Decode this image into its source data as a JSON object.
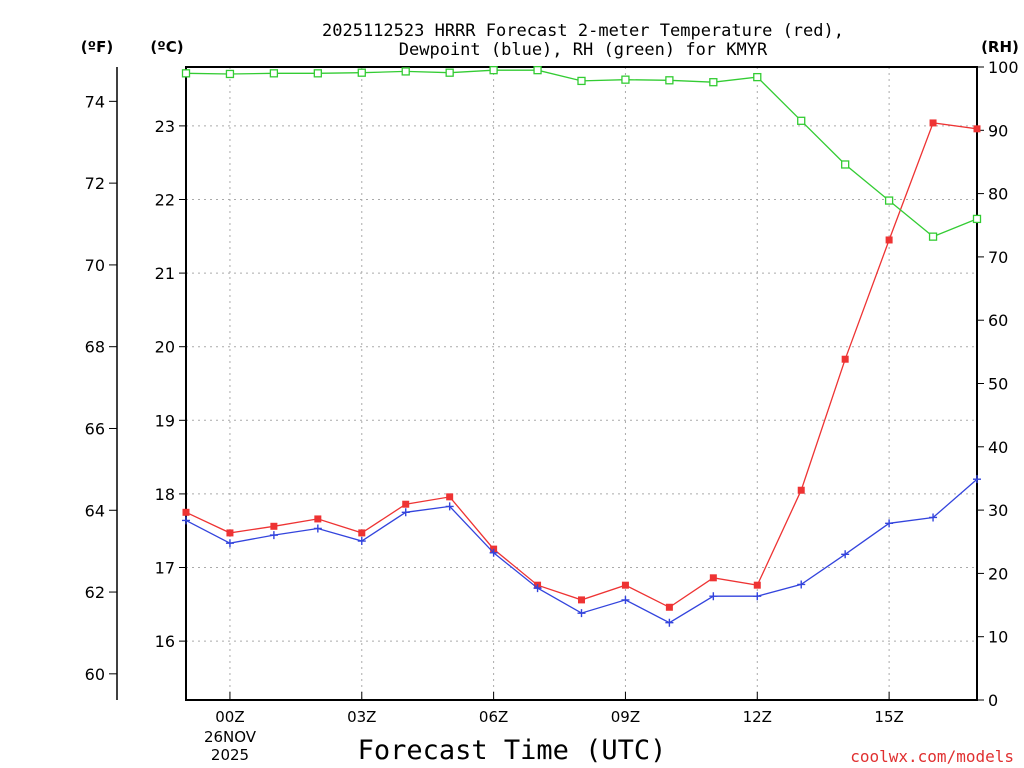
{
  "chart_data": {
    "type": "line",
    "title_line1": "2025112523 HRRR Forecast 2-meter Temperature (red),",
    "title_line2": "Dewpoint (blue), RH (green) for KMYR",
    "xlabel": "Forecast Time (UTC)",
    "watermark": "coolwx.com/models",
    "unit_labels": {
      "fahrenheit": "(ºF)",
      "celsius": "(ºC)",
      "rh": "(RH)"
    },
    "x_hours": [
      -1,
      0,
      1,
      2,
      3,
      4,
      5,
      6,
      7,
      8,
      9,
      10,
      11,
      12,
      13,
      14,
      15,
      16,
      17
    ],
    "x_ticks": [
      {
        "hour": 0,
        "label": "00Z"
      },
      {
        "hour": 3,
        "label": "03Z"
      },
      {
        "hour": 6,
        "label": "06Z"
      },
      {
        "hour": 9,
        "label": "09Z"
      },
      {
        "hour": 12,
        "label": "12Z"
      },
      {
        "hour": 15,
        "label": "15Z"
      }
    ],
    "date_label_line1": "26NOV",
    "date_label_line2": "2025",
    "xlim": [
      -1,
      17
    ],
    "celsius_axis": {
      "ylim": [
        15.2,
        23.8
      ],
      "ticks": [
        "16",
        "17",
        "18",
        "19",
        "20",
        "21",
        "22",
        "23"
      ]
    },
    "fahrenheit_axis": {
      "ticks": [
        "60",
        "62",
        "64",
        "66",
        "68",
        "70",
        "72",
        "74"
      ]
    },
    "rh_axis": {
      "ylim": [
        0,
        100
      ],
      "ticks": [
        "0",
        "10",
        "20",
        "30",
        "40",
        "50",
        "60",
        "70",
        "80",
        "90",
        "100"
      ]
    },
    "grid": true,
    "series": [
      {
        "name": "Temperature",
        "color": "#ee3333",
        "marker": "filled-square",
        "axis": "celsius",
        "values": [
          17.75,
          17.47,
          17.56,
          17.66,
          17.47,
          17.86,
          17.96,
          17.25,
          16.76,
          16.56,
          16.76,
          16.46,
          16.86,
          16.76,
          18.05,
          19.83,
          21.45,
          23.04,
          22.96
        ]
      },
      {
        "name": "Dewpoint",
        "color": "#3344dd",
        "marker": "plus",
        "axis": "celsius",
        "values": [
          17.64,
          17.33,
          17.44,
          17.53,
          17.36,
          17.75,
          17.83,
          17.2,
          16.72,
          16.38,
          16.56,
          16.25,
          16.61,
          16.61,
          16.77,
          17.18,
          17.6,
          17.68,
          18.2
        ]
      },
      {
        "name": "RH",
        "color": "#33cc33",
        "marker": "hollow-square",
        "axis": "rh",
        "values": [
          99.0,
          98.9,
          99.0,
          99.0,
          99.1,
          99.3,
          99.1,
          99.5,
          99.5,
          97.8,
          98.0,
          97.9,
          97.6,
          98.4,
          91.5,
          84.6,
          78.9,
          73.2,
          76.0
        ]
      }
    ]
  }
}
